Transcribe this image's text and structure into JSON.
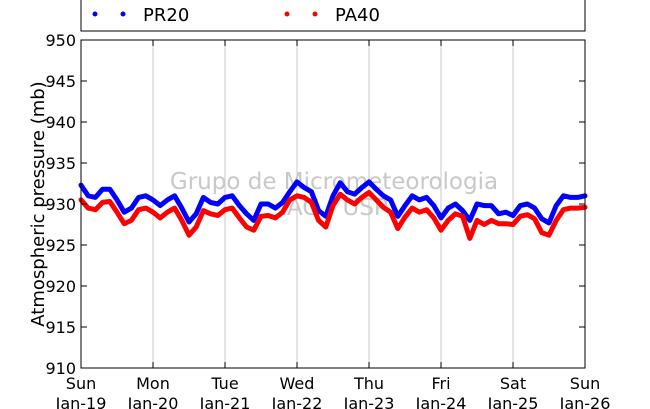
{
  "chart_data": {
    "type": "line",
    "xlabel": "",
    "ylabel": "Atmospheric pressure (mb)",
    "ylim": [
      910,
      950
    ],
    "yticks": [
      910,
      915,
      920,
      925,
      930,
      935,
      940,
      945,
      950
    ],
    "xlim": [
      0,
      7
    ],
    "xticks": [
      {
        "day": "Sun",
        "date": "Jan-19"
      },
      {
        "day": "Mon",
        "date": "Jan-20"
      },
      {
        "day": "Tue",
        "date": "Jan-21"
      },
      {
        "day": "Wed",
        "date": "Jan-22"
      },
      {
        "day": "Thu",
        "date": "Jan-23"
      },
      {
        "day": "Fri",
        "date": "Jan-24"
      },
      {
        "day": "Sat",
        "date": "Jan-25"
      },
      {
        "day": "Sun",
        "date": "Jan-26"
      }
    ],
    "grid": "vertical",
    "legend_position": "top",
    "series": [
      {
        "name": "PR20",
        "color": "#0000ff",
        "x": [
          0,
          0.1,
          0.2,
          0.3,
          0.4,
          0.5,
          0.6,
          0.7,
          0.8,
          0.9,
          1.0,
          1.1,
          1.2,
          1.3,
          1.4,
          1.5,
          1.6,
          1.7,
          1.8,
          1.9,
          2.0,
          2.1,
          2.2,
          2.3,
          2.4,
          2.5,
          2.6,
          2.7,
          2.8,
          2.9,
          3.0,
          3.1,
          3.2,
          3.3,
          3.4,
          3.5,
          3.6,
          3.7,
          3.8,
          3.9,
          4.0,
          4.1,
          4.2,
          4.3,
          4.4,
          4.5,
          4.6,
          4.7,
          4.8,
          4.9,
          5.0,
          5.1,
          5.2,
          5.3,
          5.4,
          5.5,
          5.6,
          5.7,
          5.8,
          5.9,
          6.0,
          6.1,
          6.2,
          6.3,
          6.4,
          6.5,
          6.6,
          6.7,
          6.8,
          6.9,
          7.0
        ],
        "values": [
          932.3,
          931.0,
          930.8,
          931.8,
          931.8,
          930.5,
          929.0,
          929.5,
          930.8,
          931.0,
          930.5,
          929.8,
          930.5,
          931.0,
          929.5,
          927.8,
          928.8,
          930.8,
          930.2,
          930.0,
          930.8,
          931.0,
          929.8,
          928.8,
          928.0,
          930.0,
          930.0,
          929.5,
          930.2,
          931.5,
          932.7,
          932.0,
          931.5,
          929.2,
          928.5,
          931.0,
          932.6,
          931.5,
          931.2,
          932.0,
          932.7,
          931.8,
          931.0,
          930.5,
          928.5,
          929.8,
          931.0,
          930.5,
          930.8,
          929.8,
          928.3,
          929.5,
          930.0,
          929.2,
          928.0,
          930.0,
          929.8,
          929.8,
          928.8,
          929.0,
          928.6,
          929.8,
          930.0,
          929.5,
          928.2,
          927.7,
          929.8,
          931.0,
          930.8,
          930.8,
          931.0
        ]
      },
      {
        "name": "PA40",
        "color": "#ff0000",
        "x": [
          0,
          0.1,
          0.2,
          0.3,
          0.4,
          0.5,
          0.6,
          0.7,
          0.8,
          0.9,
          1.0,
          1.1,
          1.2,
          1.3,
          1.4,
          1.5,
          1.6,
          1.7,
          1.8,
          1.9,
          2.0,
          2.1,
          2.2,
          2.3,
          2.4,
          2.5,
          2.6,
          2.7,
          2.8,
          2.9,
          3.0,
          3.1,
          3.2,
          3.3,
          3.4,
          3.5,
          3.6,
          3.7,
          3.8,
          3.9,
          4.0,
          4.1,
          4.2,
          4.3,
          4.4,
          4.5,
          4.6,
          4.7,
          4.8,
          4.9,
          5.0,
          5.1,
          5.2,
          5.3,
          5.4,
          5.5,
          5.6,
          5.7,
          5.8,
          5.9,
          6.0,
          6.1,
          6.2,
          6.3,
          6.4,
          6.5,
          6.6,
          6.7,
          6.8,
          6.9,
          7.0
        ],
        "values": [
          930.5,
          929.5,
          929.3,
          930.2,
          930.3,
          929.0,
          927.6,
          928.0,
          929.3,
          929.5,
          929.0,
          928.3,
          929.0,
          929.5,
          928.0,
          926.2,
          927.2,
          929.2,
          928.8,
          928.6,
          929.3,
          929.5,
          928.3,
          927.2,
          926.8,
          928.5,
          928.6,
          928.3,
          929.0,
          930.5,
          931.0,
          930.8,
          930.2,
          928.0,
          927.2,
          929.8,
          931.2,
          930.5,
          930.0,
          930.8,
          931.4,
          930.5,
          929.6,
          929.0,
          927.0,
          928.4,
          929.5,
          929.0,
          929.3,
          928.3,
          926.8,
          928.0,
          928.8,
          928.5,
          925.8,
          928.0,
          927.5,
          928.0,
          927.6,
          927.6,
          927.5,
          928.5,
          928.7,
          928.2,
          926.5,
          926.2,
          928.0,
          929.3,
          929.5,
          929.5,
          929.6
        ]
      }
    ],
    "watermark": [
      "Grupo de Micrometeorologia",
      "IAG / USP"
    ]
  }
}
